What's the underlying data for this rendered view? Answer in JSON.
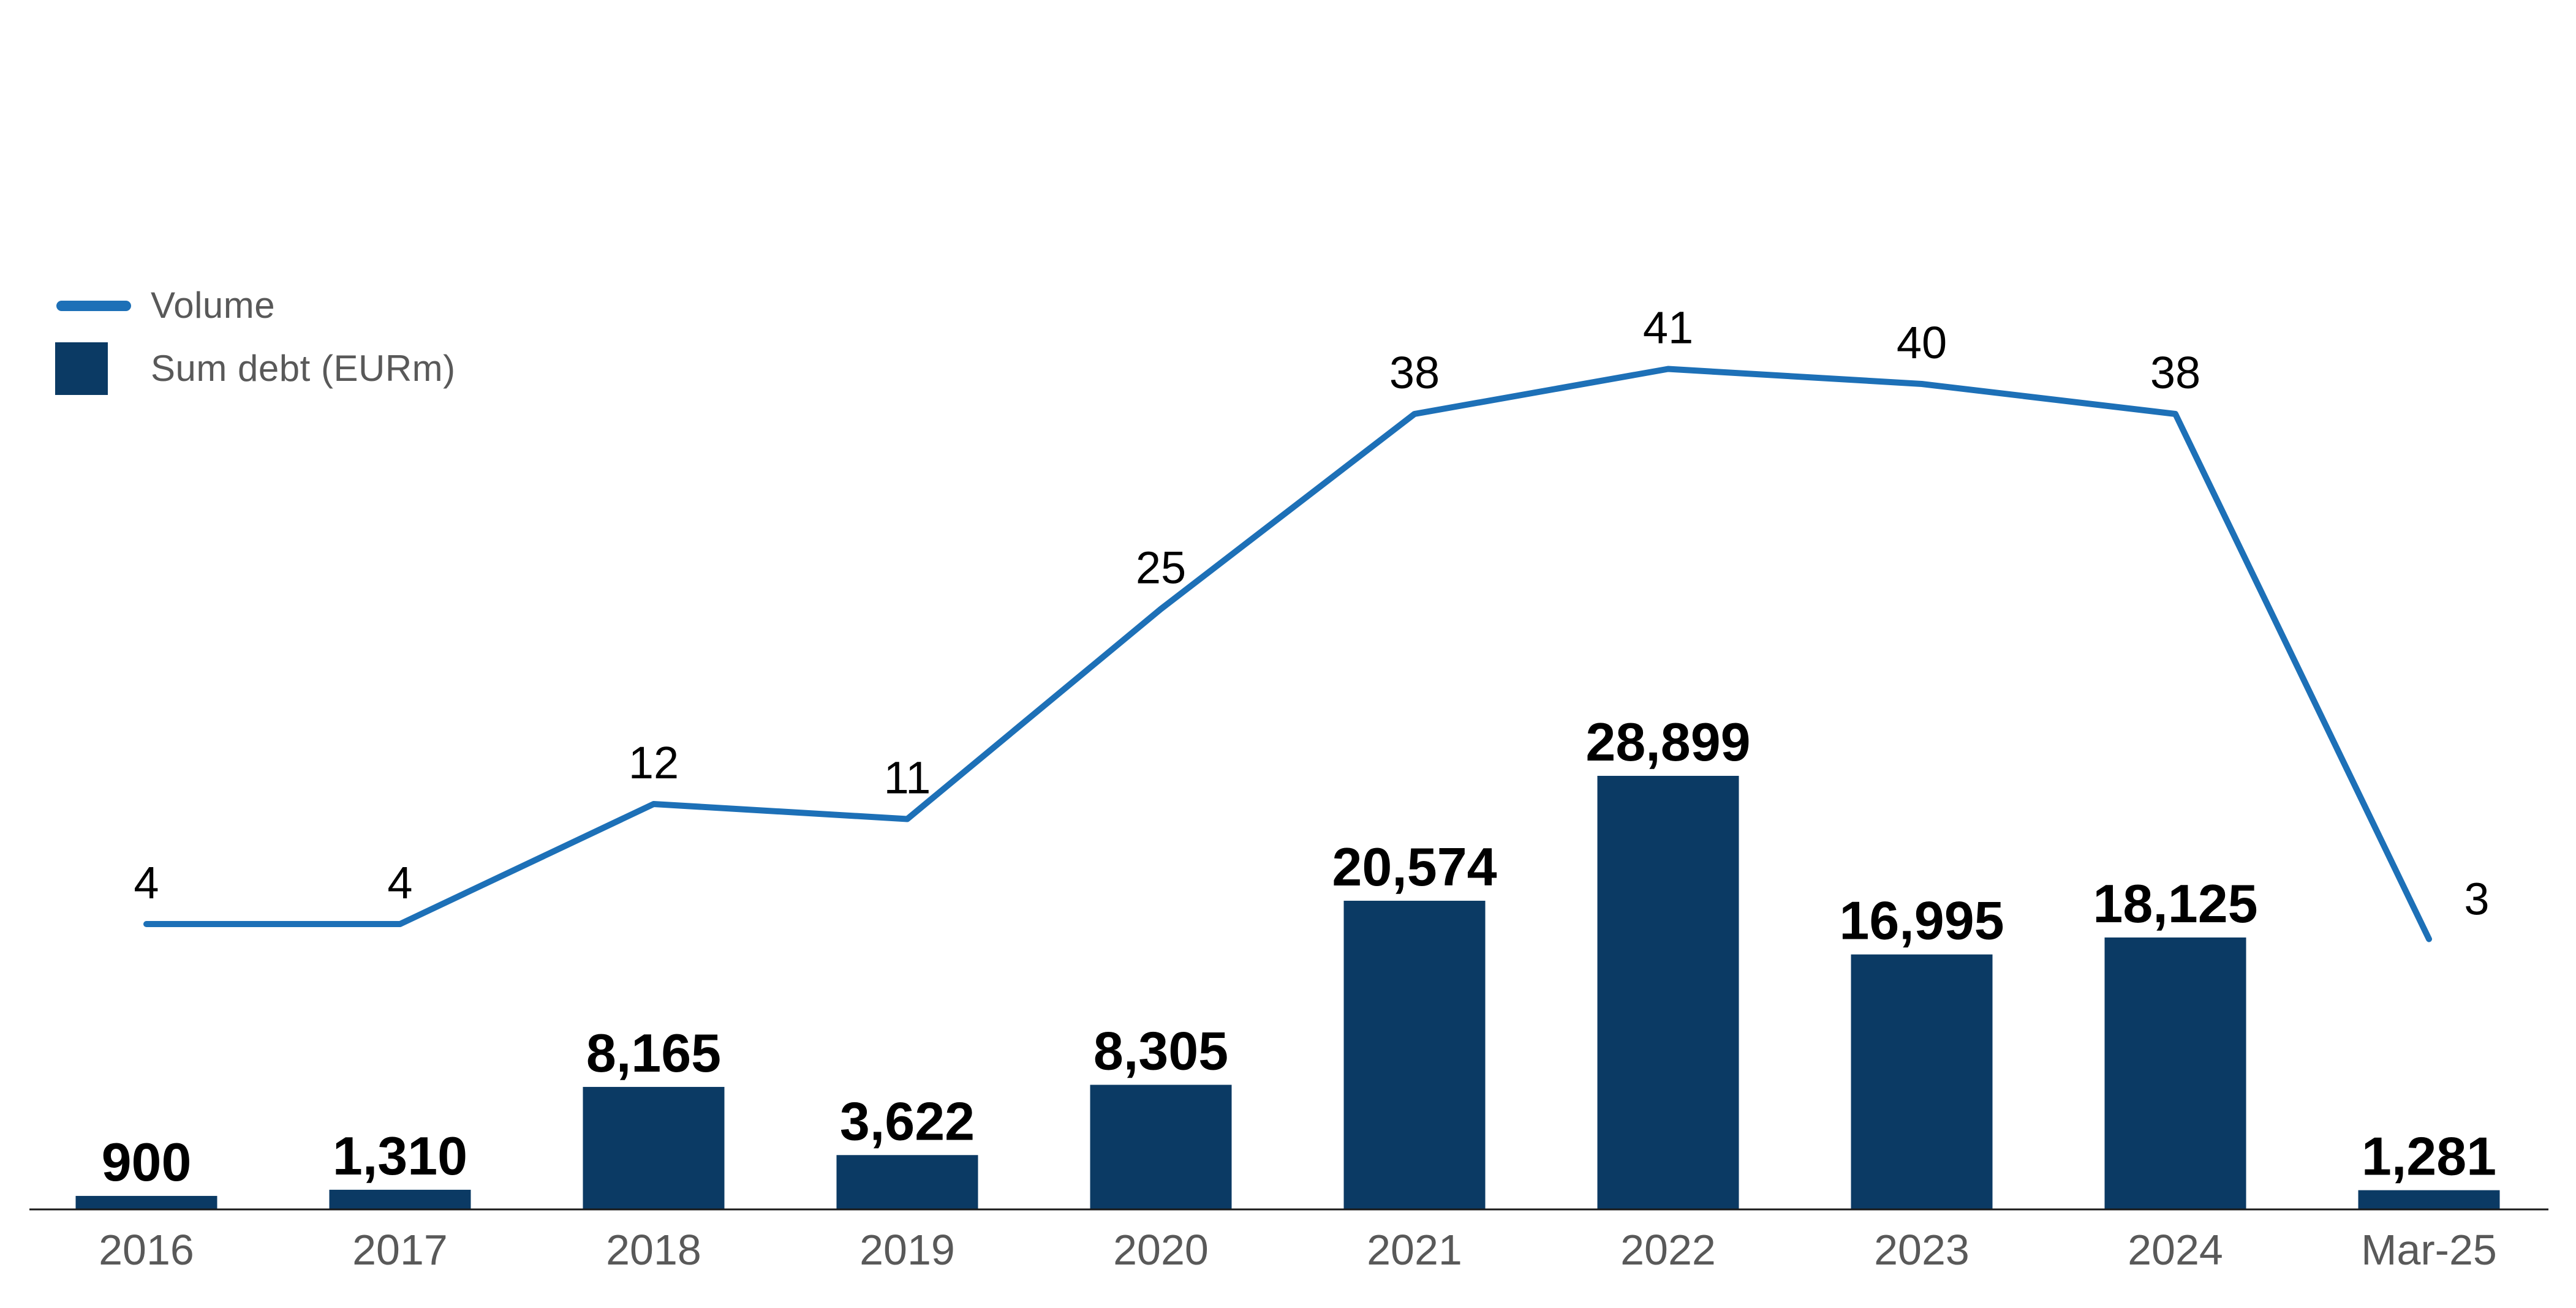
{
  "legend": {
    "volume_label": "Volume",
    "sum_debt_label": "Sum debt (EURm)"
  },
  "colors": {
    "bar": "#0b3a64",
    "line": "#1d70b7",
    "axis": "#1a1a1a",
    "axis_text": "#595959",
    "value_text": "#000000",
    "background": "#ffffff"
  },
  "chart_data": {
    "type": "bar",
    "subtype": "combo-bar-line",
    "title": "",
    "xlabel": "",
    "ylabel": "",
    "categories": [
      "2016",
      "2017",
      "2018",
      "2019",
      "2020",
      "2021",
      "2022",
      "2023",
      "2024",
      "Mar-25"
    ],
    "series": [
      {
        "name": "Volume",
        "type": "line",
        "color": "#1d70b7",
        "values": [
          4,
          4,
          12,
          11,
          25,
          38,
          41,
          40,
          38,
          3
        ]
      },
      {
        "name": "Sum debt (EURm)",
        "type": "bar",
        "color": "#0b3a64",
        "values": [
          900,
          1310,
          8165,
          3622,
          8305,
          20574,
          28899,
          16995,
          18125,
          1281
        ]
      }
    ],
    "data_labels": true,
    "legend_position": "top-left",
    "grid": false,
    "y_axis_visible": false,
    "x_axis_visible": true,
    "bar_axis_range": [
      0,
      29500
    ],
    "line_axis_range": [
      0,
      41
    ]
  }
}
